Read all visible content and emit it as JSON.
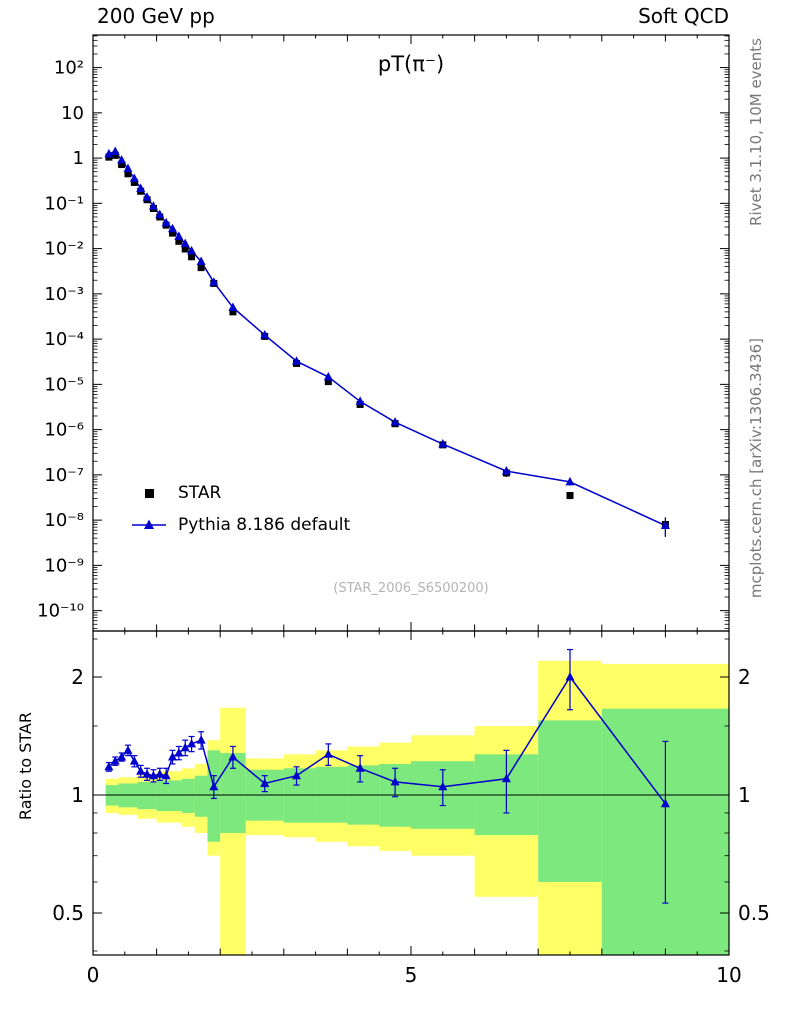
{
  "header": {
    "left": "200 GeV pp",
    "right": "Soft QCD"
  },
  "side_labels": {
    "rivet": "Rivet 3.1.10, 10M events",
    "mcplots": "mcplots.cern.ch [arXiv:1306.3436]"
  },
  "watermark": "(STAR_2006_S6500200)",
  "colors": {
    "star": "#000000",
    "pythia": "#0000cc",
    "band_yellow": "#ffff66",
    "band_green": "#7de87d",
    "frame": "#000000",
    "watermark_gray": "#b4b4b4",
    "side_label_gray": "#777777"
  },
  "legend": [
    {
      "label": "STAR",
      "marker": "filled-square"
    },
    {
      "label": "Pythia 8.186 default",
      "marker": "line-triangle"
    }
  ],
  "chart_data": [
    {
      "type": "line",
      "panel": "spectrum",
      "title": "pT(π⁻)",
      "xlim": [
        0,
        10
      ],
      "yscale": "log",
      "ylim": [
        1e-10,
        500
      ],
      "x": [
        0.25,
        0.35,
        0.45,
        0.55,
        0.65,
        0.75,
        0.85,
        0.95,
        1.05,
        1.15,
        1.25,
        1.35,
        1.45,
        1.55,
        1.7,
        1.9,
        2.2,
        2.7,
        3.2,
        3.7,
        4.2,
        4.75,
        5.5,
        6.5,
        7.5,
        9.0
      ],
      "series": [
        {
          "name": "STAR",
          "marker": "square",
          "color": "#000000",
          "values": [
            1.05,
            1.15,
            0.72,
            0.45,
            0.29,
            0.185,
            0.12,
            0.077,
            0.05,
            0.033,
            0.022,
            0.0145,
            0.0098,
            0.0066,
            0.0038,
            0.0017,
            0.0004,
            0.000115,
            2.9e-05,
            1.15e-05,
            3.6e-06,
            1.35e-06,
            4.6e-07,
            1.1e-07,
            3.5e-08,
            8e-09
          ]
        },
        {
          "name": "Pythia 8.186 default",
          "marker": "triangle",
          "color": "#0000cc",
          "values": [
            1.24,
            1.4,
            0.9,
            0.585,
            0.354,
            0.213,
            0.136,
            0.086,
            0.0565,
            0.037,
            0.0275,
            0.0186,
            0.0129,
            0.0089,
            0.0052,
            0.0018,
            0.0005,
            0.000123,
            3.25e-05,
            1.46e-05,
            4.2e-06,
            1.46e-06,
            4.8e-07,
            1.21e-07,
            7e-08,
            7.6e-09
          ]
        }
      ],
      "ytick_labels": [
        "10²",
        "10",
        "1",
        "10⁻¹",
        "10⁻²",
        "10⁻³",
        "10⁻⁴",
        "10⁻⁵",
        "10⁻⁶",
        "10⁻⁷",
        "10⁻⁸",
        "10⁻⁹",
        "10⁻¹⁰"
      ],
      "y_decades": [
        2,
        1,
        0,
        -1,
        -2,
        -3,
        -4,
        -5,
        -6,
        -7,
        -8,
        -9,
        -10
      ],
      "xticks": [
        0,
        5,
        10
      ],
      "xtick_labels": [
        "0",
        "5",
        "10"
      ]
    },
    {
      "type": "line",
      "panel": "ratio",
      "ylabel": "Ratio to STAR",
      "yscale": "log",
      "ylim": [
        0.39,
        2.62
      ],
      "yticks": [
        0.5,
        1,
        2
      ],
      "ytick_labels": [
        "0.5",
        "1",
        "2"
      ],
      "x": [
        0.25,
        0.35,
        0.45,
        0.55,
        0.65,
        0.75,
        0.85,
        0.95,
        1.05,
        1.15,
        1.25,
        1.35,
        1.45,
        1.55,
        1.7,
        1.9,
        2.2,
        2.7,
        3.2,
        3.7,
        4.2,
        4.75,
        5.5,
        6.5,
        7.5,
        9.0
      ],
      "ratio": [
        1.18,
        1.22,
        1.25,
        1.3,
        1.22,
        1.15,
        1.13,
        1.12,
        1.13,
        1.12,
        1.25,
        1.28,
        1.32,
        1.35,
        1.38,
        1.05,
        1.25,
        1.07,
        1.12,
        1.27,
        1.17,
        1.08,
        1.05,
        1.1,
        2.0,
        0.95
      ],
      "ratio_err": [
        0.03,
        0.03,
        0.03,
        0.04,
        0.04,
        0.04,
        0.04,
        0.04,
        0.04,
        0.05,
        0.05,
        0.05,
        0.06,
        0.06,
        0.07,
        0.07,
        0.08,
        0.05,
        0.06,
        0.08,
        0.09,
        0.09,
        0.11,
        0.2,
        0.35,
        0.42
      ],
      "bands": [
        {
          "x": [
            0.2,
            0.4
          ],
          "green": [
            0.94,
            1.06
          ],
          "yellow": [
            0.9,
            1.1
          ]
        },
        {
          "x": [
            0.4,
            0.7
          ],
          "green": [
            0.93,
            1.07
          ],
          "yellow": [
            0.89,
            1.11
          ]
        },
        {
          "x": [
            0.7,
            1.0
          ],
          "green": [
            0.92,
            1.08
          ],
          "yellow": [
            0.87,
            1.13
          ]
        },
        {
          "x": [
            1.0,
            1.4
          ],
          "green": [
            0.91,
            1.09
          ],
          "yellow": [
            0.85,
            1.15
          ]
        },
        {
          "x": [
            1.4,
            1.6
          ],
          "green": [
            0.9,
            1.1
          ],
          "yellow": [
            0.83,
            1.17
          ]
        },
        {
          "x": [
            1.6,
            1.8
          ],
          "green": [
            0.88,
            1.12
          ],
          "yellow": [
            0.8,
            1.2
          ]
        },
        {
          "x": [
            1.8,
            2.0
          ],
          "green": [
            0.76,
            1.3
          ],
          "yellow": [
            0.7,
            1.38
          ]
        },
        {
          "x": [
            2.0,
            2.4
          ],
          "green": [
            0.8,
            1.28
          ],
          "yellow": [
            0.38,
            1.67
          ]
        },
        {
          "x": [
            2.4,
            3.0
          ],
          "green": [
            0.86,
            1.16
          ],
          "yellow": [
            0.79,
            1.24
          ]
        },
        {
          "x": [
            3.0,
            3.5
          ],
          "green": [
            0.85,
            1.17
          ],
          "yellow": [
            0.78,
            1.27
          ]
        },
        {
          "x": [
            3.5,
            4.0
          ],
          "green": [
            0.85,
            1.18
          ],
          "yellow": [
            0.76,
            1.3
          ]
        },
        {
          "x": [
            4.0,
            4.5
          ],
          "green": [
            0.84,
            1.19
          ],
          "yellow": [
            0.74,
            1.33
          ]
        },
        {
          "x": [
            4.5,
            5.0
          ],
          "green": [
            0.83,
            1.2
          ],
          "yellow": [
            0.72,
            1.36
          ]
        },
        {
          "x": [
            5.0,
            6.0
          ],
          "green": [
            0.82,
            1.22
          ],
          "yellow": [
            0.7,
            1.42
          ]
        },
        {
          "x": [
            6.0,
            7.0
          ],
          "green": [
            0.79,
            1.27
          ],
          "yellow": [
            0.55,
            1.5
          ]
        },
        {
          "x": [
            7.0,
            8.0
          ],
          "green": [
            0.6,
            1.55
          ],
          "yellow": [
            0.38,
            2.2
          ]
        },
        {
          "x": [
            8.0,
            10.0
          ],
          "green": [
            0.38,
            1.66
          ],
          "yellow": [
            0.38,
            2.16
          ]
        }
      ]
    }
  ]
}
